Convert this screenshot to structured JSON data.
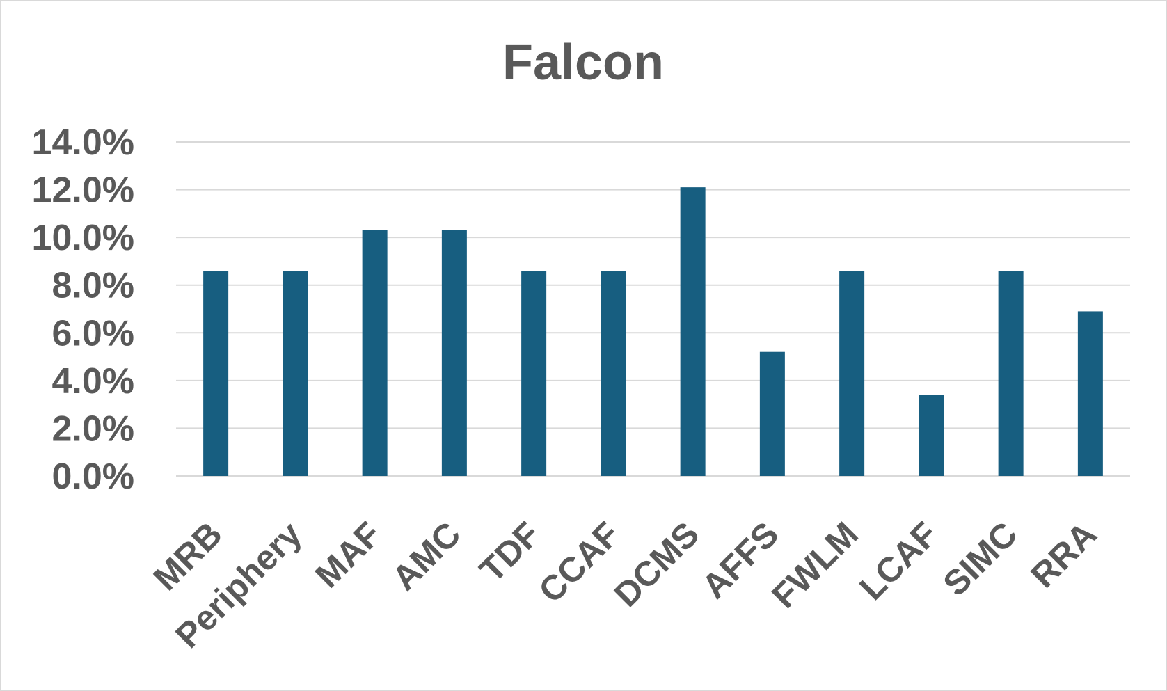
{
  "chart_data": {
    "type": "bar",
    "title": "Falcon",
    "xlabel": "",
    "ylabel": "",
    "categories": [
      "MRB",
      "Periphery",
      "MAF",
      "AMC",
      "TDF",
      "CCAF",
      "DCMS",
      "AFFS",
      "FWLM",
      "LCAF",
      "SIMC",
      "RRA"
    ],
    "series": [
      {
        "values": [
          8.6,
          8.6,
          10.3,
          10.3,
          8.6,
          8.6,
          12.1,
          5.2,
          8.6,
          3.4,
          8.6,
          6.9
        ]
      }
    ],
    "ylim": [
      0,
      14
    ],
    "yticks": [
      "0.0%",
      "2.0%",
      "4.0%",
      "6.0%",
      "8.0%",
      "10.0%",
      "12.0%",
      "14.0%"
    ],
    "grid": true,
    "legend": "none",
    "bar_color": "#175e80",
    "text_color": "#595959",
    "grid_color": "#d9d9d9"
  }
}
